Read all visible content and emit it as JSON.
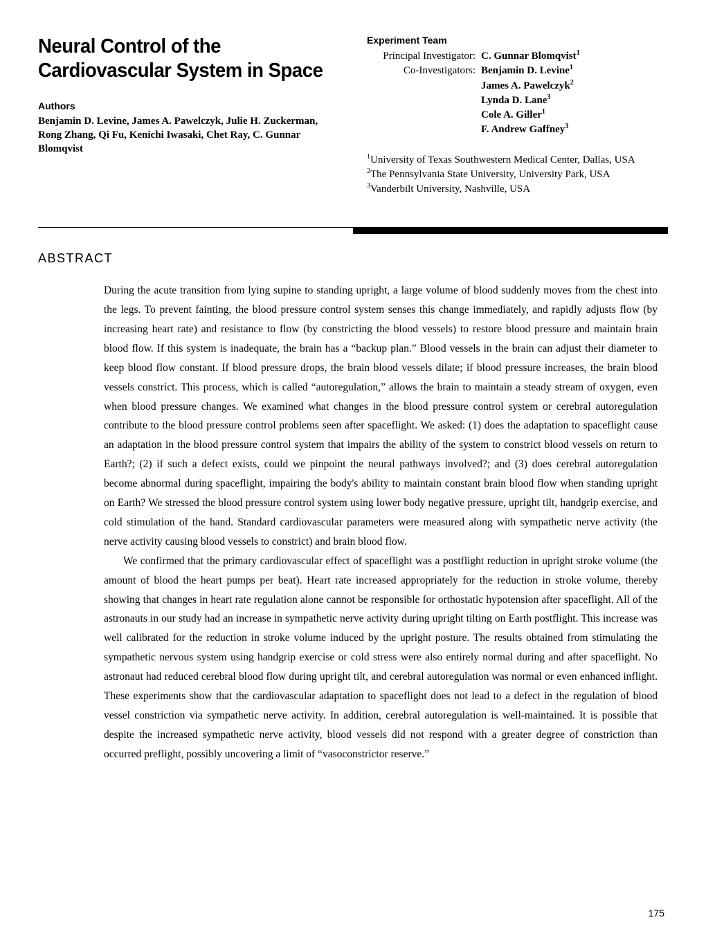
{
  "title": "Neural Control of the Cardiovascular System in Space",
  "authors_label": "Authors",
  "authors_text": "Benjamin D. Levine, James A. Pawelczyk, Julie H. Zuckerman, Rong Zhang, Qi Fu, Kenichi Iwasaki, Chet Ray, C. Gunnar Blomqvist",
  "team_label": "Experiment Team",
  "team": {
    "pi_role": "Principal Investigator:",
    "pi_name": "C. Gunnar Blomqvist",
    "pi_sup": "1",
    "co_role": "Co-Investigators:",
    "co": [
      {
        "name": "Benjamin D. Levine",
        "sup": "1"
      },
      {
        "name": "James A. Pawelczyk",
        "sup": "2"
      },
      {
        "name": "Lynda D. Lane",
        "sup": "3"
      },
      {
        "name": "Cole A. Giller",
        "sup": "1"
      },
      {
        "name": "F. Andrew Gaffney",
        "sup": "3"
      }
    ]
  },
  "affiliations": [
    {
      "sup": "1",
      "text": "University of Texas Southwestern Medical Center, Dallas, USA"
    },
    {
      "sup": "2",
      "text": "The Pennsylvania State University, University Park, USA"
    },
    {
      "sup": "3",
      "text": "Vanderbilt University, Nashville, USA"
    }
  ],
  "abstract_heading": "ABSTRACT",
  "abstract_p1": "During the acute transition from lying supine to standing upright, a large volume of blood suddenly moves from the chest into the legs. To prevent fainting, the blood pressure control system senses this change immediately, and rapidly adjusts flow (by increasing heart rate) and resistance to flow (by constricting the blood vessels) to restore blood pressure and maintain brain blood flow. If this system is inadequate, the brain has a “backup plan.” Blood vessels in the brain can adjust their diameter to keep blood flow constant. If blood pressure drops, the brain blood vessels dilate; if blood pressure increases, the brain blood vessels constrict. This process, which is called “autoregulation,” allows the brain to maintain a steady stream of oxygen, even when blood pressure changes. We examined what changes in the blood pressure control system or cerebral autoregulation contribute to the blood pressure control problems seen after spaceflight. We asked: (1) does the adaptation to spaceflight cause an adaptation in the blood pressure control system that impairs the ability of the system to constrict blood vessels on return to Earth?; (2) if such a defect exists, could we pinpoint the neural pathways involved?; and (3) does cerebral autoregulation become abnormal during spaceflight, impairing the body's ability to maintain constant brain blood flow when standing upright on Earth? We stressed the blood pressure control system using lower body negative pressure, upright tilt, handgrip exercise, and cold stimulation of the hand. Standard cardiovascular parameters were measured along with sympathetic nerve activity (the nerve activity causing blood vessels to constrict) and brain blood flow.",
  "abstract_p2": "We confirmed that the primary cardiovascular effect of spaceflight was a postflight reduction in upright stroke volume (the amount of blood the heart pumps per beat). Heart rate increased appropriately for the reduction in stroke volume, thereby showing that changes in heart rate regulation alone cannot be responsible for orthostatic hypotension after spaceflight. All of the astronauts in our study had an increase in sympathetic nerve activity during upright tilting on Earth postflight. This increase was well calibrated for the reduction in stroke volume induced by the upright posture. The results obtained from stimulating the sympathetic nervous system using handgrip exercise or cold stress were also entirely normal during and after spaceflight. No astronaut had reduced cerebral blood flow during upright tilt, and cerebral autoregulation was normal or even enhanced inflight. These experiments show that the cardiovascular adaptation to spaceflight does not lead to a defect in the regulation of blood vessel constriction via sympathetic nerve activity. In addition, cerebral autoregulation is well-maintained. It is possible that despite the increased sympathetic nerve activity, blood vessels did not respond with a greater degree of constriction than occurred preflight, possibly uncovering a limit of “vasoconstrictor reserve.”",
  "page_number": "175",
  "colors": {
    "text": "#000000",
    "background": "#ffffff"
  }
}
